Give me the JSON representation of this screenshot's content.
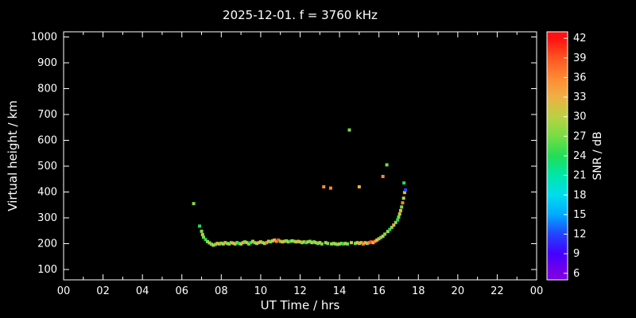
{
  "title": "2025-12-01. f = 3760 kHz",
  "colors": {
    "background": "#000000",
    "text": "#ffffff",
    "frame": "#ffffff"
  },
  "chart_data": {
    "type": "scatter",
    "title": "2025-12-01. f = 3760 kHz",
    "xlabel": "UT Time / hrs",
    "ylabel": "Virtual height / km",
    "colorbar_label": "SNR / dB",
    "xlim": [
      0,
      24
    ],
    "ylim": [
      60,
      1020
    ],
    "grid": false,
    "legend": "colorbar-right",
    "x_tick_values": [
      0,
      2,
      4,
      6,
      8,
      10,
      12,
      14,
      16,
      18,
      20,
      22,
      24
    ],
    "x_tick_labels": [
      "00",
      "02",
      "04",
      "06",
      "08",
      "10",
      "12",
      "14",
      "16",
      "18",
      "20",
      "22",
      "00"
    ],
    "x_minor_tick_values": [
      1,
      3,
      5,
      7,
      9,
      11,
      13,
      15,
      17,
      19,
      21,
      23
    ],
    "y_tick_values": [
      100,
      200,
      300,
      400,
      500,
      600,
      700,
      800,
      900,
      1000
    ],
    "colorbar": {
      "min": 5,
      "max": 43,
      "tick_values": [
        6,
        9,
        12,
        15,
        18,
        21,
        24,
        27,
        30,
        33,
        36,
        39,
        42
      ]
    },
    "color_scale": [
      [
        6,
        "#7a00e6"
      ],
      [
        9,
        "#4400ff"
      ],
      [
        12,
        "#2244ff"
      ],
      [
        15,
        "#00aaff"
      ],
      [
        18,
        "#00ddee"
      ],
      [
        21,
        "#00e6aa"
      ],
      [
        24,
        "#22dd55"
      ],
      [
        27,
        "#77dd44"
      ],
      [
        30,
        "#bbd044"
      ],
      [
        33,
        "#eeb044"
      ],
      [
        36,
        "#ff8833"
      ],
      [
        39,
        "#ff5522"
      ],
      [
        42,
        "#ff1111"
      ]
    ],
    "points_format": "[ut_hours, virtual_height_km, snr_db]",
    "points": [
      [
        6.6,
        355,
        27
      ],
      [
        6.9,
        268,
        24
      ],
      [
        7.0,
        248,
        27
      ],
      [
        7.05,
        235,
        30
      ],
      [
        7.1,
        225,
        27
      ],
      [
        7.2,
        216,
        24
      ],
      [
        7.3,
        208,
        27
      ],
      [
        7.4,
        203,
        30
      ],
      [
        7.5,
        198,
        27
      ],
      [
        7.6,
        194,
        30
      ],
      [
        7.7,
        197,
        27
      ],
      [
        7.8,
        201,
        33
      ],
      [
        7.9,
        199,
        30
      ],
      [
        8.0,
        202,
        27
      ],
      [
        8.1,
        199,
        30
      ],
      [
        8.2,
        204,
        33
      ],
      [
        8.3,
        201,
        27
      ],
      [
        8.4,
        199,
        30
      ],
      [
        8.5,
        204,
        27
      ],
      [
        8.6,
        202,
        33
      ],
      [
        8.7,
        199,
        30
      ],
      [
        8.8,
        204,
        27
      ],
      [
        8.9,
        201,
        24
      ],
      [
        9.0,
        199,
        30
      ],
      [
        9.1,
        204,
        33
      ],
      [
        9.2,
        207,
        27
      ],
      [
        9.3,
        204,
        30
      ],
      [
        9.4,
        199,
        27
      ],
      [
        9.5,
        204,
        24
      ],
      [
        9.6,
        209,
        30
      ],
      [
        9.7,
        204,
        27
      ],
      [
        9.8,
        201,
        30
      ],
      [
        9.9,
        204,
        33
      ],
      [
        10.0,
        207,
        30
      ],
      [
        10.1,
        204,
        27
      ],
      [
        10.2,
        201,
        30
      ],
      [
        10.3,
        204,
        36
      ],
      [
        10.4,
        209,
        30
      ],
      [
        10.5,
        207,
        27
      ],
      [
        10.6,
        211,
        30
      ],
      [
        10.7,
        214,
        33
      ],
      [
        10.8,
        209,
        36
      ],
      [
        10.9,
        214,
        39
      ],
      [
        11.0,
        209,
        27
      ],
      [
        11.1,
        207,
        33
      ],
      [
        11.2,
        209,
        30
      ],
      [
        11.3,
        211,
        27
      ],
      [
        11.4,
        207,
        30
      ],
      [
        11.5,
        209,
        24
      ],
      [
        11.6,
        211,
        30
      ],
      [
        11.7,
        209,
        27
      ],
      [
        11.8,
        207,
        30
      ],
      [
        11.9,
        209,
        33
      ],
      [
        12.0,
        207,
        30
      ],
      [
        12.1,
        204,
        27
      ],
      [
        12.2,
        207,
        30
      ],
      [
        12.3,
        204,
        24
      ],
      [
        12.4,
        207,
        30
      ],
      [
        12.5,
        209,
        27
      ],
      [
        12.6,
        204,
        30
      ],
      [
        12.7,
        207,
        27
      ],
      [
        12.8,
        204,
        30
      ],
      [
        12.9,
        201,
        27
      ],
      [
        13.0,
        204,
        30
      ],
      [
        13.1,
        199,
        27
      ],
      [
        13.2,
        420,
        36
      ],
      [
        13.3,
        204,
        30
      ],
      [
        13.4,
        201,
        27
      ],
      [
        13.55,
        415,
        36
      ],
      [
        13.6,
        199,
        30
      ],
      [
        13.7,
        201,
        27
      ],
      [
        13.8,
        199,
        30
      ],
      [
        13.9,
        197,
        27
      ],
      [
        14.0,
        199,
        30
      ],
      [
        14.1,
        201,
        27
      ],
      [
        14.2,
        199,
        24
      ],
      [
        14.3,
        201,
        30
      ],
      [
        14.4,
        199,
        27
      ],
      [
        14.5,
        640,
        27
      ],
      [
        14.6,
        204,
        30
      ],
      [
        14.8,
        201,
        27
      ],
      [
        14.9,
        204,
        30
      ],
      [
        15.0,
        420,
        33
      ],
      [
        15.0,
        201,
        33
      ],
      [
        15.1,
        204,
        30
      ],
      [
        15.2,
        199,
        36
      ],
      [
        15.3,
        204,
        33
      ],
      [
        15.4,
        201,
        30
      ],
      [
        15.5,
        204,
        36
      ],
      [
        15.6,
        207,
        39
      ],
      [
        15.7,
        204,
        33
      ],
      [
        15.8,
        209,
        36
      ],
      [
        15.9,
        214,
        30
      ],
      [
        16.0,
        219,
        33
      ],
      [
        16.1,
        224,
        27
      ],
      [
        16.2,
        460,
        36
      ],
      [
        16.2,
        229,
        30
      ],
      [
        16.3,
        237,
        27
      ],
      [
        16.4,
        505,
        27
      ],
      [
        16.45,
        247,
        30
      ],
      [
        16.55,
        255,
        24
      ],
      [
        16.65,
        263,
        27
      ],
      [
        16.75,
        272,
        33
      ],
      [
        16.85,
        282,
        27
      ],
      [
        16.95,
        292,
        24
      ],
      [
        17.0,
        303,
        27
      ],
      [
        17.05,
        315,
        30
      ],
      [
        17.1,
        328,
        33
      ],
      [
        17.15,
        342,
        27
      ],
      [
        17.2,
        358,
        36
      ],
      [
        17.25,
        376,
        30
      ],
      [
        17.27,
        435,
        24
      ],
      [
        17.3,
        398,
        33
      ],
      [
        17.35,
        408,
        12
      ]
    ]
  }
}
